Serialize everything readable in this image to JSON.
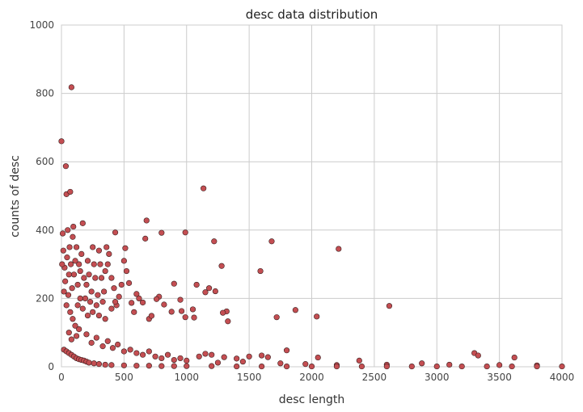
{
  "chart_data": {
    "type": "scatter",
    "title": "desc data distribution",
    "xlabel": "desc length",
    "ylabel": "counts of desc",
    "xlim": [
      0,
      4000
    ],
    "ylim": [
      0,
      1000
    ],
    "xticks": [
      "0",
      "500",
      "1000",
      "1500",
      "2000",
      "2500",
      "3000",
      "3500",
      "4000"
    ],
    "yticks": [
      "0",
      "200",
      "400",
      "600",
      "800",
      "1000"
    ],
    "grid": true,
    "colors": {
      "marker_fill": "#c44e52",
      "marker_edge": "#3a2020",
      "grid": "#cccccc",
      "frame": "#cccccc"
    },
    "series": [
      {
        "points": [
          [
            80,
            818
          ],
          [
            0,
            660
          ],
          [
            35,
            587
          ],
          [
            40,
            505
          ],
          [
            70,
            512
          ],
          [
            1135,
            522
          ],
          [
            680,
            428
          ],
          [
            990,
            393
          ],
          [
            430,
            393
          ],
          [
            1680,
            367
          ],
          [
            1220,
            367
          ],
          [
            2215,
            345
          ],
          [
            670,
            375
          ],
          [
            510,
            347
          ],
          [
            800,
            392
          ],
          [
            1590,
            280
          ],
          [
            1280,
            295
          ],
          [
            2620,
            178
          ],
          [
            1870,
            166
          ],
          [
            1180,
            230
          ],
          [
            1080,
            240
          ],
          [
            1150,
            218
          ],
          [
            2040,
            147
          ],
          [
            1720,
            145
          ],
          [
            900,
            243
          ],
          [
            1230,
            221
          ],
          [
            1320,
            162
          ],
          [
            1330,
            133
          ],
          [
            1290,
            158
          ],
          [
            950,
            196
          ],
          [
            990,
            145
          ],
          [
            1050,
            168
          ],
          [
            1060,
            144
          ],
          [
            960,
            163
          ],
          [
            780,
            205
          ],
          [
            760,
            198
          ],
          [
            880,
            161
          ],
          [
            820,
            182
          ],
          [
            620,
            200
          ],
          [
            650,
            188
          ],
          [
            700,
            140
          ],
          [
            720,
            149
          ],
          [
            580,
            160
          ],
          [
            560,
            187
          ],
          [
            600,
            213
          ],
          [
            540,
            245
          ],
          [
            520,
            280
          ],
          [
            500,
            310
          ],
          [
            480,
            240
          ],
          [
            460,
            205
          ],
          [
            440,
            180
          ],
          [
            420,
            230
          ],
          [
            400,
            260
          ],
          [
            380,
            330
          ],
          [
            370,
            300
          ],
          [
            360,
            350
          ],
          [
            350,
            280
          ],
          [
            340,
            220
          ],
          [
            330,
            190
          ],
          [
            320,
            260
          ],
          [
            310,
            300
          ],
          [
            300,
            340
          ],
          [
            290,
            210
          ],
          [
            280,
            180
          ],
          [
            270,
            260
          ],
          [
            260,
            300
          ],
          [
            250,
            350
          ],
          [
            240,
            220
          ],
          [
            230,
            190
          ],
          [
            220,
            270
          ],
          [
            210,
            310
          ],
          [
            200,
            240
          ],
          [
            190,
            200
          ],
          [
            180,
            260
          ],
          [
            170,
            420
          ],
          [
            160,
            330
          ],
          [
            150,
            280
          ],
          [
            140,
            300
          ],
          [
            130,
            240
          ],
          [
            120,
            350
          ],
          [
            110,
            310
          ],
          [
            100,
            270
          ],
          [
            95,
            410
          ],
          [
            90,
            380
          ],
          [
            85,
            230
          ],
          [
            75,
            300
          ],
          [
            65,
            350
          ],
          [
            60,
            270
          ],
          [
            55,
            210
          ],
          [
            50,
            400
          ],
          [
            45,
            320
          ],
          [
            30,
            250
          ],
          [
            25,
            290
          ],
          [
            20,
            220
          ],
          [
            15,
            340
          ],
          [
            10,
            390
          ],
          [
            5,
            300
          ],
          [
            130,
            180
          ],
          [
            150,
            200
          ],
          [
            170,
            170
          ],
          [
            210,
            150
          ],
          [
            250,
            160
          ],
          [
            300,
            150
          ],
          [
            350,
            140
          ],
          [
            400,
            170
          ],
          [
            430,
            190
          ],
          [
            110,
            120
          ],
          [
            90,
            140
          ],
          [
            70,
            160
          ],
          [
            40,
            180
          ],
          [
            60,
            100
          ],
          [
            80,
            80
          ],
          [
            120,
            90
          ],
          [
            140,
            110
          ],
          [
            200,
            95
          ],
          [
            240,
            70
          ],
          [
            280,
            85
          ],
          [
            330,
            60
          ],
          [
            370,
            75
          ],
          [
            410,
            55
          ],
          [
            450,
            65
          ],
          [
            500,
            45
          ],
          [
            550,
            50
          ],
          [
            600,
            40
          ],
          [
            650,
            35
          ],
          [
            700,
            45
          ],
          [
            750,
            30
          ],
          [
            800,
            25
          ],
          [
            850,
            35
          ],
          [
            900,
            20
          ],
          [
            950,
            25
          ],
          [
            1000,
            18
          ],
          [
            1100,
            30
          ],
          [
            1150,
            38
          ],
          [
            1200,
            35
          ],
          [
            1300,
            28
          ],
          [
            1400,
            24
          ],
          [
            1500,
            30
          ],
          [
            1600,
            33
          ],
          [
            1650,
            28
          ],
          [
            1800,
            48
          ],
          [
            2050,
            27
          ],
          [
            2380,
            18
          ],
          [
            3300,
            40
          ],
          [
            3330,
            33
          ],
          [
            3620,
            27
          ],
          [
            2880,
            10
          ],
          [
            3100,
            6
          ],
          [
            3500,
            5
          ],
          [
            3800,
            4
          ],
          [
            2600,
            6
          ],
          [
            2200,
            5
          ],
          [
            1950,
            8
          ],
          [
            1750,
            10
          ],
          [
            1450,
            15
          ],
          [
            1250,
            12
          ],
          [
            20,
            50
          ],
          [
            40,
            45
          ],
          [
            60,
            40
          ],
          [
            80,
            35
          ],
          [
            100,
            30
          ],
          [
            120,
            25
          ],
          [
            140,
            22
          ],
          [
            160,
            20
          ],
          [
            180,
            18
          ],
          [
            200,
            15
          ],
          [
            220,
            12
          ],
          [
            260,
            10
          ],
          [
            300,
            8
          ],
          [
            350,
            6
          ],
          [
            400,
            5
          ],
          [
            500,
            4
          ],
          [
            600,
            3
          ],
          [
            700,
            3
          ],
          [
            800,
            2
          ],
          [
            900,
            2
          ],
          [
            1000,
            2
          ],
          [
            1200,
            2
          ],
          [
            1400,
            1
          ],
          [
            1600,
            1
          ],
          [
            1800,
            1
          ],
          [
            2000,
            1
          ],
          [
            2200,
            1
          ],
          [
            2400,
            1
          ],
          [
            2600,
            1
          ],
          [
            2800,
            1
          ],
          [
            3000,
            1
          ],
          [
            3200,
            1
          ],
          [
            3400,
            1
          ],
          [
            3600,
            1
          ],
          [
            3800,
            1
          ],
          [
            4000,
            1
          ]
        ]
      }
    ]
  }
}
